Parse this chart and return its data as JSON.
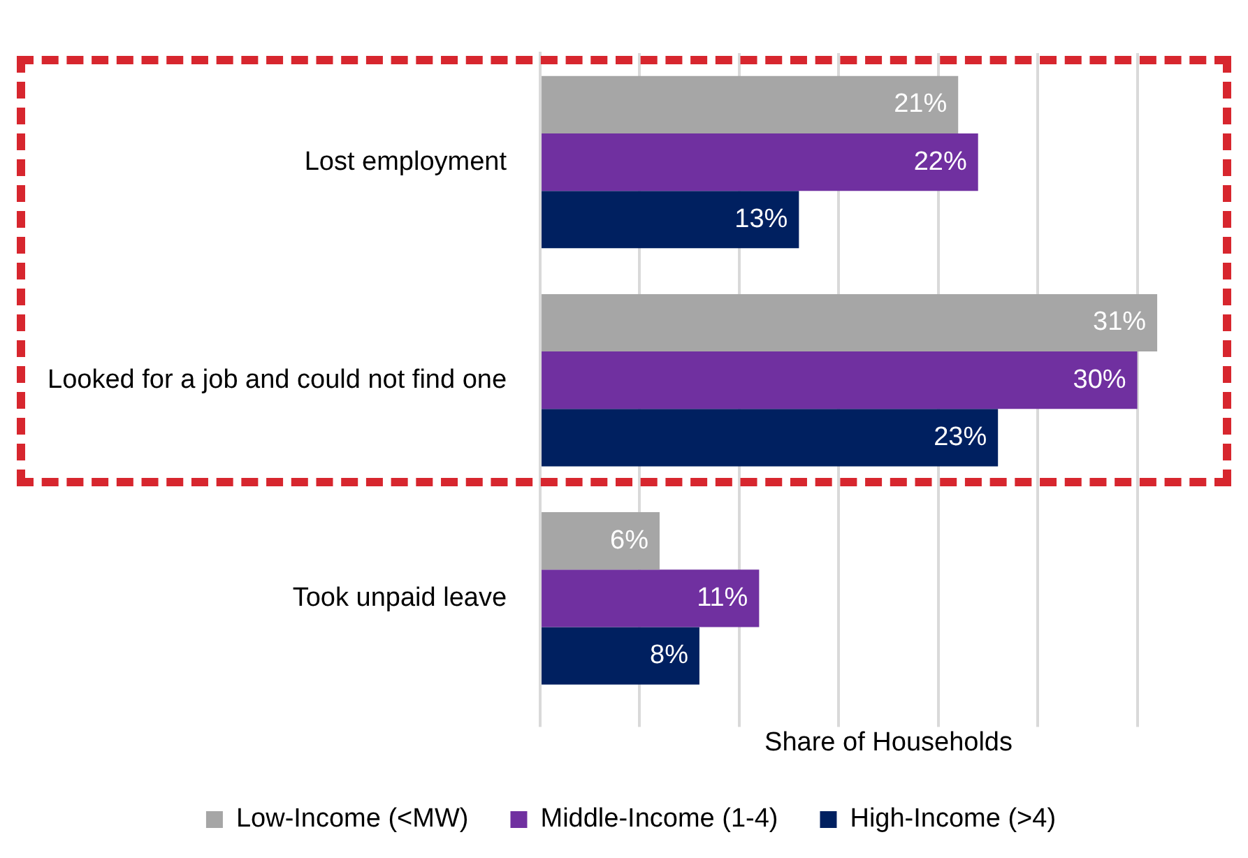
{
  "chart_data": {
    "type": "bar",
    "orientation": "horizontal",
    "xlabel": "Share of Households",
    "categories": [
      "Lost employment",
      "Looked for a job and could not find one",
      "Took unpaid leave"
    ],
    "series": [
      {
        "name": "Low-Income (<MW)",
        "color": "#a6a6a6",
        "values": [
          21,
          31,
          6
        ],
        "value_labels": [
          "21%",
          "31%",
          "6%"
        ]
      },
      {
        "name": "Middle-Income (1-4)",
        "color": "#7030a0",
        "values": [
          22,
          30,
          11
        ],
        "value_labels": [
          "22%",
          "30%",
          "11%"
        ]
      },
      {
        "name": "High-Income (>4)",
        "color": "#002060",
        "values": [
          13,
          23,
          8
        ],
        "value_labels": [
          "13%",
          "23%",
          "8%"
        ]
      }
    ],
    "xlim": [
      0,
      35
    ],
    "xticks": [
      0,
      5,
      10,
      15,
      20,
      25,
      30
    ],
    "tick_labels": "y",
    "grid": "x",
    "legend": "bottom"
  }
}
